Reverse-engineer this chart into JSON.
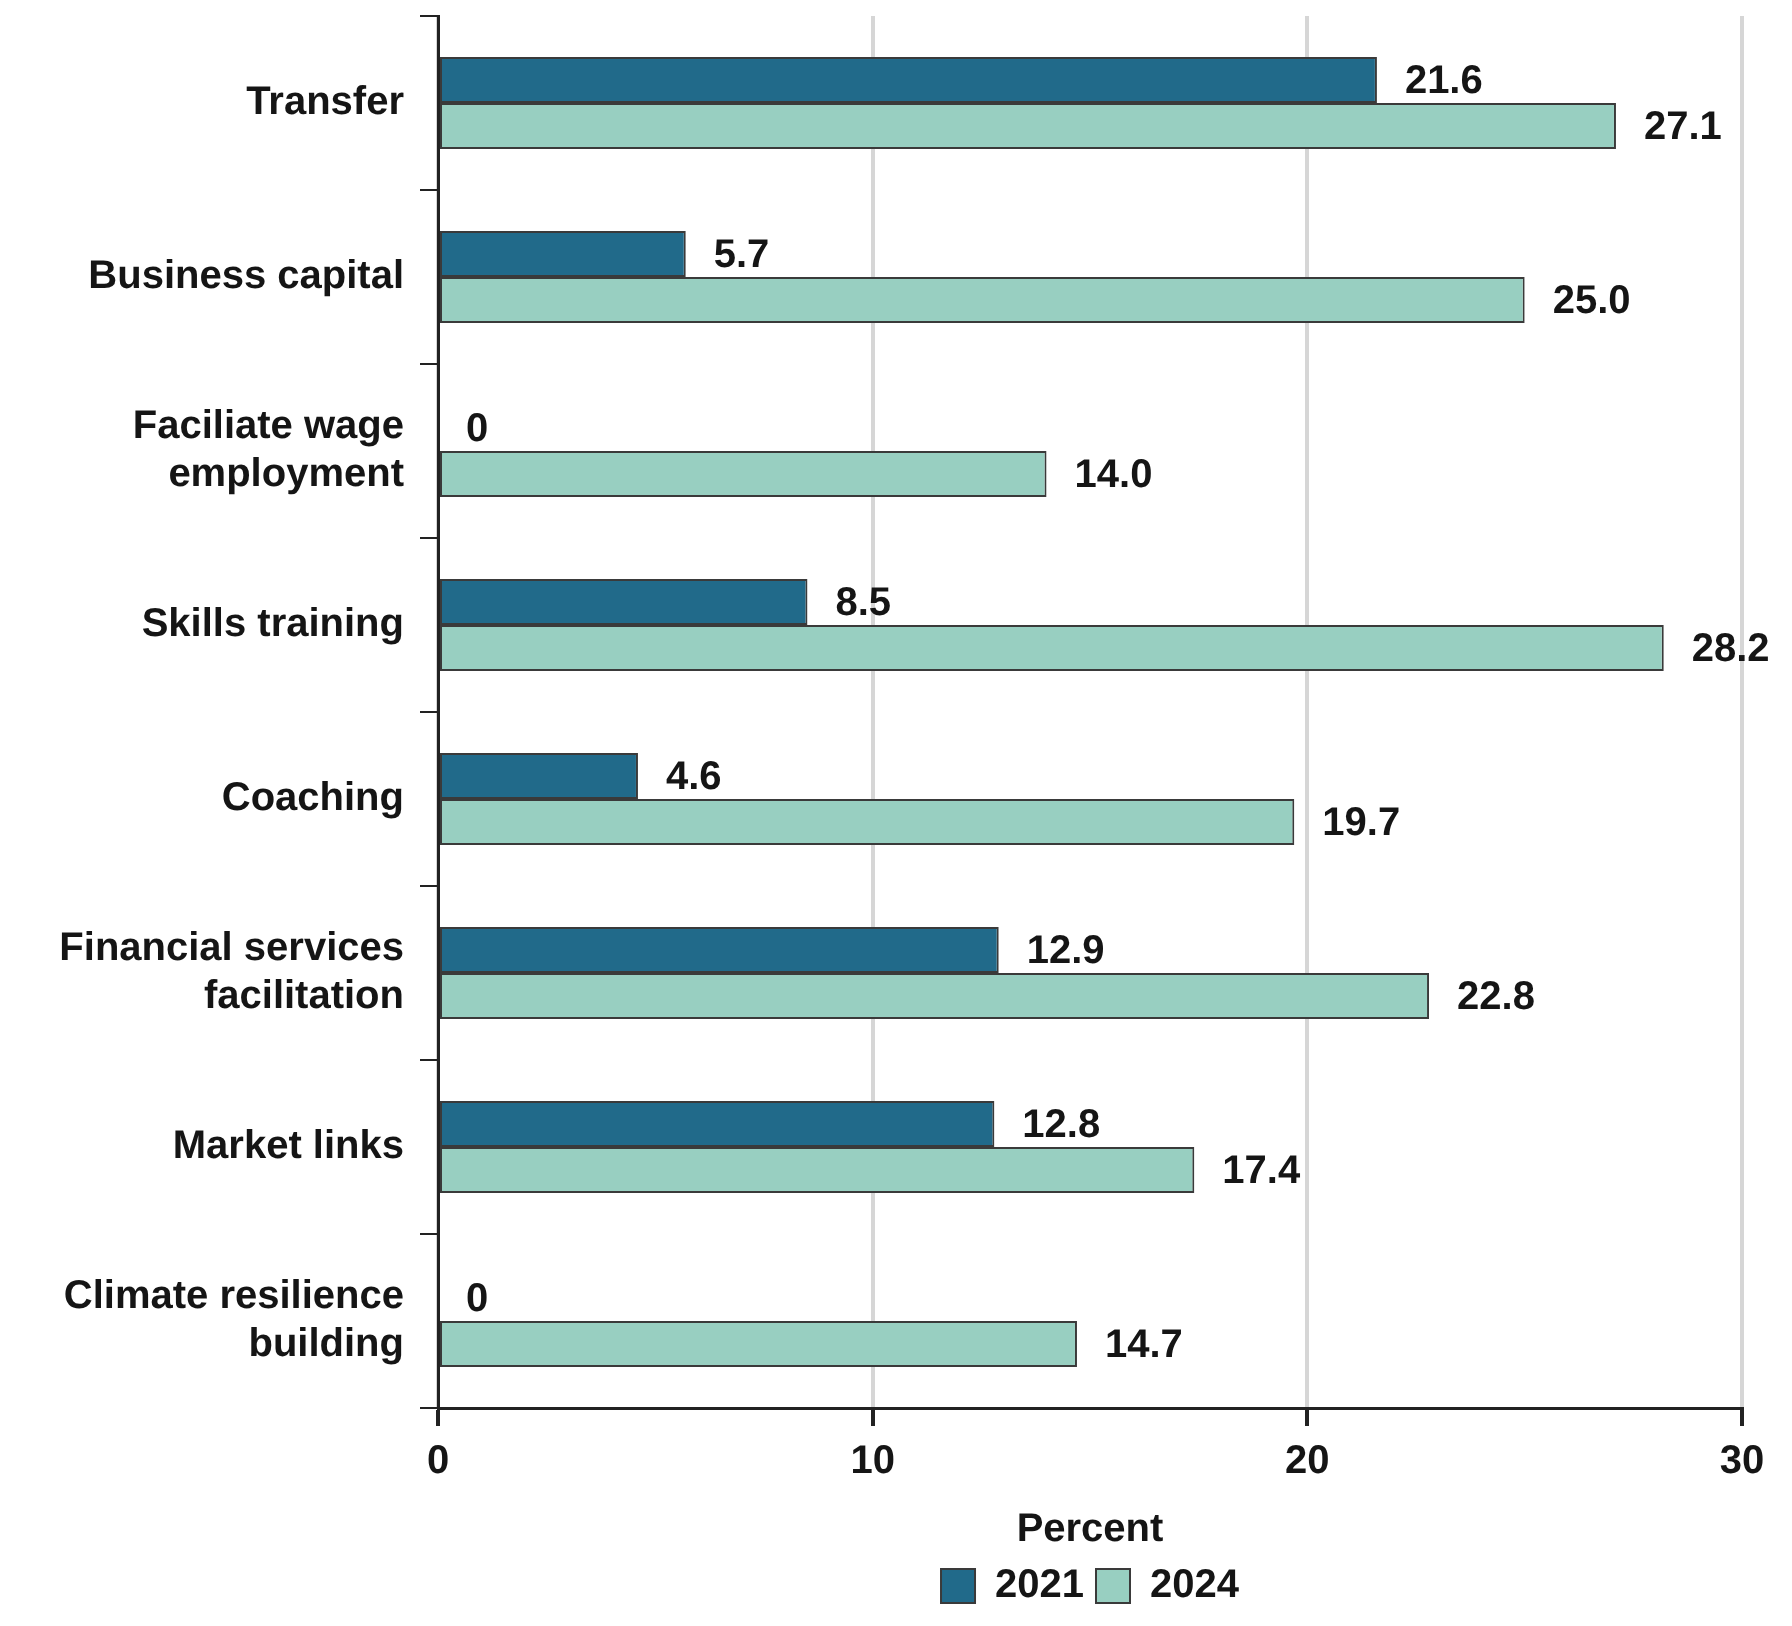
{
  "chart_data": {
    "type": "bar",
    "orientation": "horizontal",
    "categories": [
      "Transfer",
      "Business capital",
      "Faciliate wage employment",
      "Skills training",
      "Coaching",
      "Financial services facilitation",
      "Market links",
      "Climate resilience building"
    ],
    "series": [
      {
        "name": "2021",
        "color": "#216a8a",
        "values": [
          21.6,
          5.7,
          0,
          8.5,
          4.6,
          12.9,
          12.8,
          0
        ],
        "value_labels": [
          "21.6",
          "5.7",
          "0",
          "8.5",
          "4.6",
          "12.9",
          "12.8",
          "0"
        ]
      },
      {
        "name": "2024",
        "color": "#98cfc1",
        "values": [
          27.1,
          25.0,
          14.0,
          28.2,
          19.7,
          22.8,
          17.4,
          14.7
        ],
        "value_labels": [
          "27.1",
          "25.0",
          "14.0",
          "28.2",
          "19.7",
          "22.8",
          "17.4",
          "14.7"
        ]
      }
    ],
    "xlabel": "Percent",
    "xlim": [
      0,
      30
    ],
    "xticks": [
      0,
      10,
      20,
      30
    ],
    "grid": "x",
    "legend": "bottom"
  }
}
